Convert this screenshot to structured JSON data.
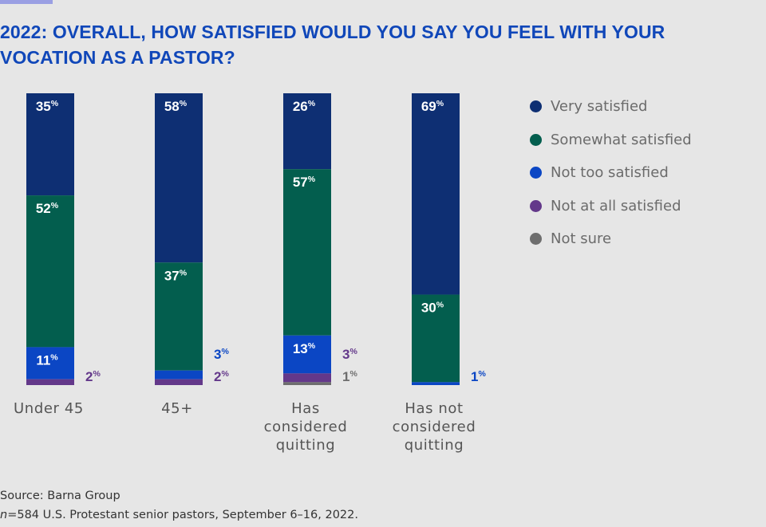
{
  "chart_data": {
    "type": "bar",
    "stacked": true,
    "title": "2022: OVERALL, HOW SATISFIED WOULD YOU SAY YOU FEEL WITH YOUR VOCATION AS A PASTOR?",
    "xlabel": "",
    "ylabel": "",
    "ylim": [
      0,
      100
    ],
    "unit": "%",
    "categories": [
      [
        "Under 45"
      ],
      [
        "45+"
      ],
      [
        "Has",
        "considered",
        "quitting"
      ],
      [
        "Has not",
        "considered",
        "quitting"
      ]
    ],
    "series": [
      {
        "name": "Very satisfied",
        "color": "#0e2f73",
        "values": [
          35,
          58,
          26,
          69
        ]
      },
      {
        "name": "Somewhat satisfied",
        "color": "#035e4e",
        "values": [
          52,
          37,
          57,
          30
        ]
      },
      {
        "name": "Not too satisfied",
        "color": "#0b46c4",
        "values": [
          11,
          3,
          13,
          1
        ]
      },
      {
        "name": "Not at all satisfied",
        "color": "#63388a",
        "values": [
          2,
          2,
          3,
          0
        ]
      },
      {
        "name": "Not sure",
        "color": "#6e6e6e",
        "values": [
          0,
          0,
          1,
          0
        ]
      }
    ],
    "legend_position": "right"
  },
  "source_line": "Source: Barna Group",
  "note_n": "n",
  "note_rest": "=584 U.S. Protestant senior pastors, September 6–16, 2022."
}
